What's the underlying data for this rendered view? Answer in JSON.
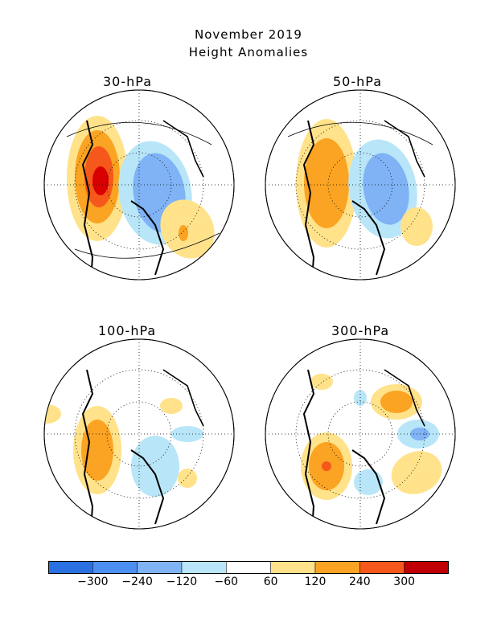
{
  "header": {
    "line1": "November 2019",
    "line2": "Height Anomalies"
  },
  "panels": [
    {
      "level": "30-hPa"
    },
    {
      "level": "50-hPa"
    },
    {
      "level": "100-hPa"
    },
    {
      "level": "300-hPa"
    }
  ],
  "legend": {
    "ticks": [
      "-300",
      "-240",
      "-120",
      "-60",
      "60",
      "120",
      "240",
      "300"
    ],
    "colors": [
      "#2a70e0",
      "#4c8ff0",
      "#7fb3f5",
      "#b8e6f8",
      "#ffffff",
      "#ffe28a",
      "#fba322",
      "#f5581a",
      "#c00000"
    ]
  }
}
